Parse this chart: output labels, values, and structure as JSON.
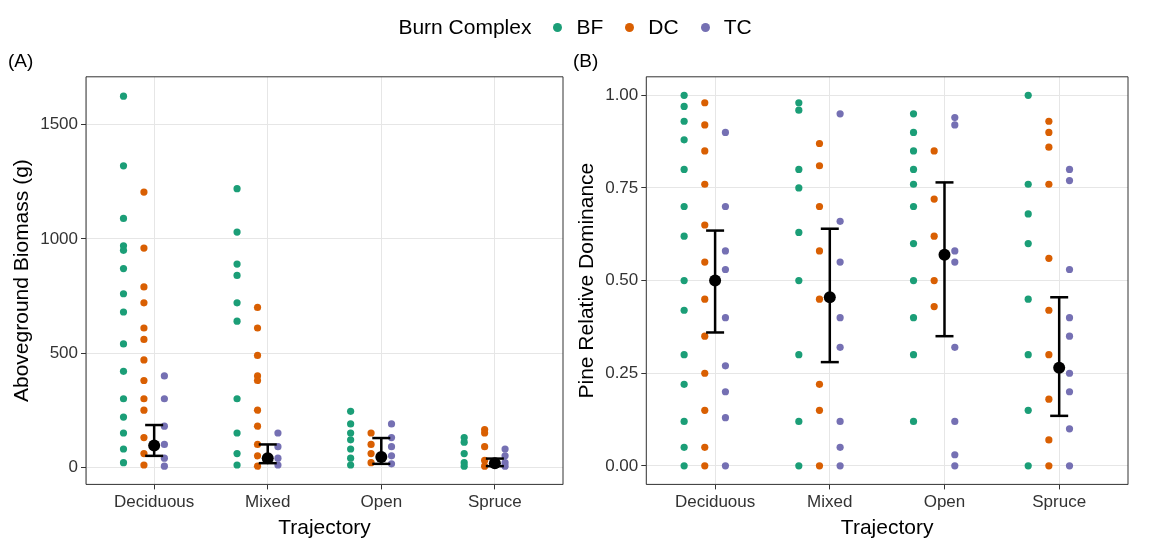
{
  "chart_data": [
    {
      "type": "scatter",
      "title": "(A)",
      "xlabel": "Trajectory",
      "ylabel": "Aboveground Biomass (g)",
      "legend_title": "Burn Complex",
      "legend": "top",
      "grid": true,
      "marker": "circle",
      "categories": [
        "Deciduous",
        "Mixed",
        "Open",
        "Spruce"
      ],
      "ylim": [
        -75,
        1710
      ],
      "yticks": [
        0,
        500,
        1000,
        1500
      ],
      "series": [
        {
          "name": "BF",
          "color": "#1b9e77",
          "x": [
            "Deciduous",
            "Deciduous",
            "Deciduous",
            "Deciduous",
            "Deciduous",
            "Deciduous",
            "Deciduous",
            "Deciduous",
            "Deciduous",
            "Deciduous",
            "Deciduous",
            "Deciduous",
            "Deciduous",
            "Deciduous",
            "Deciduous",
            "Mixed",
            "Mixed",
            "Mixed",
            "Mixed",
            "Mixed",
            "Mixed",
            "Mixed",
            "Mixed",
            "Mixed",
            "Mixed",
            "Open",
            "Open",
            "Open",
            "Open",
            "Open",
            "Open",
            "Open",
            "Spruce",
            "Spruce",
            "Spruce",
            "Spruce",
            "Spruce"
          ],
          "values": [
            1625,
            1320,
            1090,
            970,
            950,
            870,
            760,
            680,
            540,
            420,
            300,
            220,
            150,
            80,
            20,
            1220,
            1030,
            890,
            840,
            720,
            640,
            300,
            150,
            60,
            10,
            245,
            190,
            150,
            120,
            80,
            40,
            10,
            130,
            110,
            60,
            20,
            5
          ]
        },
        {
          "name": "DC",
          "color": "#d95f02",
          "x": [
            "Deciduous",
            "Deciduous",
            "Deciduous",
            "Deciduous",
            "Deciduous",
            "Deciduous",
            "Deciduous",
            "Deciduous",
            "Deciduous",
            "Deciduous",
            "Deciduous",
            "Deciduous",
            "Deciduous",
            "Mixed",
            "Mixed",
            "Mixed",
            "Mixed",
            "Mixed",
            "Mixed",
            "Mixed",
            "Mixed",
            "Mixed",
            "Mixed",
            "Open",
            "Open",
            "Open",
            "Open",
            "Spruce",
            "Spruce",
            "Spruce",
            "Spruce",
            "Spruce"
          ],
          "values": [
            1205,
            960,
            790,
            720,
            610,
            560,
            470,
            380,
            300,
            250,
            130,
            60,
            10,
            700,
            610,
            490,
            400,
            380,
            250,
            180,
            100,
            50,
            5,
            150,
            100,
            60,
            20,
            165,
            150,
            90,
            30,
            5
          ]
        },
        {
          "name": "TC",
          "color": "#7570b3",
          "x": [
            "Deciduous",
            "Deciduous",
            "Deciduous",
            "Deciduous",
            "Deciduous",
            "Deciduous",
            "Mixed",
            "Mixed",
            "Mixed",
            "Mixed",
            "Open",
            "Open",
            "Open",
            "Open",
            "Open",
            "Spruce",
            "Spruce",
            "Spruce",
            "Spruce"
          ],
          "values": [
            400,
            300,
            180,
            100,
            40,
            5,
            150,
            90,
            40,
            10,
            190,
            130,
            90,
            50,
            15,
            80,
            50,
            20,
            5
          ]
        },
        {
          "color": "#000000",
          "x": [
            "Deciduous",
            "Mixed",
            "Open",
            "Spruce"
          ],
          "values": [
            95,
            40,
            45,
            18
          ],
          "errors": [
            [
              50,
              185
            ],
            [
              18,
              100
            ],
            [
              15,
              128
            ],
            [
              5,
              38
            ]
          ]
        }
      ]
    },
    {
      "type": "scatter",
      "title": "(B)",
      "xlabel": "Trajectory",
      "ylabel": "Pine Relative Dominance",
      "grid": true,
      "marker": "circle",
      "categories": [
        "Deciduous",
        "Mixed",
        "Open",
        "Spruce"
      ],
      "ylim": [
        -0.05,
        1.05
      ],
      "yticks": [
        {
          "value": 0,
          "label": "0.00"
        },
        {
          "value": 0.25,
          "label": "0.25"
        },
        {
          "value": 0.5,
          "label": "0.50"
        },
        {
          "value": 0.75,
          "label": "0.75"
        },
        {
          "value": 1,
          "label": "1.00"
        }
      ],
      "series": [
        {
          "color": "#1b9e77",
          "x": [
            "Deciduous",
            "Deciduous",
            "Deciduous",
            "Deciduous",
            "Deciduous",
            "Deciduous",
            "Deciduous",
            "Deciduous",
            "Deciduous",
            "Deciduous",
            "Deciduous",
            "Deciduous",
            "Deciduous",
            "Deciduous",
            "Mixed",
            "Mixed",
            "Mixed",
            "Mixed",
            "Mixed",
            "Mixed",
            "Mixed",
            "Mixed",
            "Mixed",
            "Open",
            "Open",
            "Open",
            "Open",
            "Open",
            "Open",
            "Open",
            "Open",
            "Open",
            "Open",
            "Open",
            "Spruce",
            "Spruce",
            "Spruce",
            "Spruce",
            "Spruce",
            "Spruce",
            "Spruce",
            "Spruce"
          ],
          "values": [
            1.0,
            0.97,
            0.93,
            0.88,
            0.8,
            0.7,
            0.62,
            0.5,
            0.42,
            0.3,
            0.22,
            0.12,
            0.05,
            0,
            0.98,
            0.96,
            0.8,
            0.75,
            0.63,
            0.5,
            0.3,
            0.12,
            0,
            0.95,
            0.9,
            0.85,
            0.8,
            0.76,
            0.7,
            0.6,
            0.5,
            0.4,
            0.3,
            0.12,
            1.0,
            0.76,
            0.68,
            0.6,
            0.45,
            0.3,
            0.15,
            0
          ]
        },
        {
          "color": "#d95f02",
          "x": [
            "Deciduous",
            "Deciduous",
            "Deciduous",
            "Deciduous",
            "Deciduous",
            "Deciduous",
            "Deciduous",
            "Deciduous",
            "Deciduous",
            "Deciduous",
            "Deciduous",
            "Deciduous",
            "Mixed",
            "Mixed",
            "Mixed",
            "Mixed",
            "Mixed",
            "Mixed",
            "Mixed",
            "Mixed",
            "Open",
            "Open",
            "Open",
            "Open",
            "Open",
            "Spruce",
            "Spruce",
            "Spruce",
            "Spruce",
            "Spruce",
            "Spruce",
            "Spruce",
            "Spruce",
            "Spruce",
            "Spruce"
          ],
          "values": [
            0.98,
            0.92,
            0.85,
            0.76,
            0.65,
            0.55,
            0.45,
            0.35,
            0.25,
            0.15,
            0.05,
            0,
            0.87,
            0.81,
            0.7,
            0.58,
            0.45,
            0.22,
            0.15,
            0,
            0.85,
            0.72,
            0.62,
            0.5,
            0.43,
            0.93,
            0.9,
            0.86,
            0.76,
            0.56,
            0.42,
            0.3,
            0.18,
            0.07,
            0
          ]
        },
        {
          "color": "#7570b3",
          "x": [
            "Deciduous",
            "Deciduous",
            "Deciduous",
            "Deciduous",
            "Deciduous",
            "Deciduous",
            "Deciduous",
            "Deciduous",
            "Deciduous",
            "Mixed",
            "Mixed",
            "Mixed",
            "Mixed",
            "Mixed",
            "Mixed",
            "Mixed",
            "Mixed",
            "Open",
            "Open",
            "Open",
            "Open",
            "Open",
            "Open",
            "Open",
            "Open",
            "Spruce",
            "Spruce",
            "Spruce",
            "Spruce",
            "Spruce",
            "Spruce",
            "Spruce",
            "Spruce",
            "Spruce"
          ],
          "values": [
            0.9,
            0.7,
            0.58,
            0.53,
            0.4,
            0.27,
            0.2,
            0.13,
            0,
            0.95,
            0.66,
            0.55,
            0.4,
            0.32,
            0.12,
            0.05,
            0,
            0.94,
            0.92,
            0.58,
            0.55,
            0.32,
            0.12,
            0.03,
            0,
            0.8,
            0.77,
            0.53,
            0.4,
            0.35,
            0.25,
            0.2,
            0.1,
            0
          ]
        },
        {
          "color": "#000000",
          "x": [
            "Deciduous",
            "Mixed",
            "Open",
            "Spruce"
          ],
          "values": [
            0.5,
            0.455,
            0.57,
            0.265
          ],
          "errors": [
            [
              0.36,
              0.635
            ],
            [
              0.28,
              0.64
            ],
            [
              0.35,
              0.765
            ],
            [
              0.135,
              0.455
            ]
          ]
        }
      ]
    }
  ]
}
